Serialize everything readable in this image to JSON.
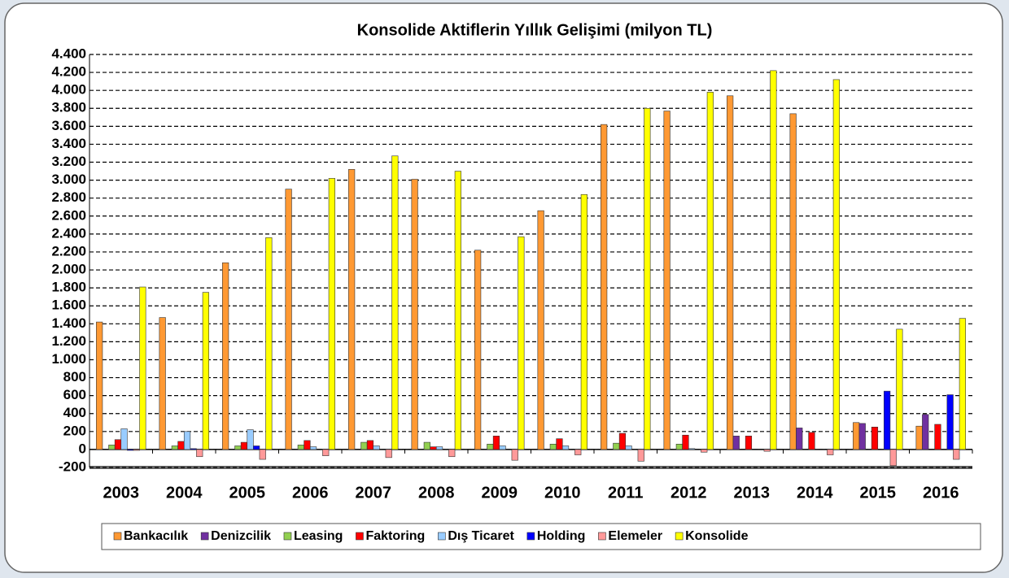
{
  "chart_data": {
    "type": "bar",
    "title": "Konsolide Aktiflerin Yıllık Gelişimi (milyon TL)",
    "categories": [
      "2003",
      "2004",
      "2005",
      "2006",
      "2007",
      "2008",
      "2009",
      "2010",
      "2011",
      "2012",
      "2013",
      "2014",
      "2015",
      "2016"
    ],
    "series": [
      {
        "name": "Bankacılık",
        "color": "#ff9933",
        "values": [
          1420,
          1470,
          2080,
          2900,
          3120,
          3010,
          2220,
          2660,
          3620,
          3770,
          3940,
          3740,
          300,
          260
        ]
      },
      {
        "name": "Denizcilik",
        "color": "#7030a0",
        "values": [
          0,
          0,
          0,
          0,
          0,
          0,
          0,
          0,
          0,
          0,
          150,
          240,
          290,
          390
        ]
      },
      {
        "name": "Leasing",
        "color": "#92d050",
        "values": [
          50,
          40,
          40,
          50,
          80,
          80,
          60,
          60,
          70,
          60,
          0,
          0,
          0,
          0
        ]
      },
      {
        "name": "Faktoring",
        "color": "#ff0000",
        "values": [
          110,
          90,
          80,
          100,
          100,
          30,
          150,
          120,
          180,
          160,
          150,
          190,
          250,
          280
        ]
      },
      {
        "name": "Dış Ticaret",
        "color": "#99ccff",
        "values": [
          230,
          200,
          220,
          30,
          40,
          30,
          40,
          40,
          40,
          10,
          0,
          0,
          0,
          0
        ]
      },
      {
        "name": "Holding",
        "color": "#0000ff",
        "values": [
          -10,
          10,
          40,
          0,
          0,
          0,
          0,
          0,
          0,
          0,
          0,
          0,
          650,
          610
        ]
      },
      {
        "name": "Elemeler",
        "color": "#ff9999",
        "values": [
          -10,
          -80,
          -110,
          -70,
          -90,
          -80,
          -120,
          -60,
          -130,
          -30,
          -20,
          -60,
          -180,
          -110
        ]
      },
      {
        "name": "Konsolide",
        "color": "#ffff00",
        "values": [
          1810,
          1750,
          2360,
          3020,
          3270,
          3100,
          2370,
          2840,
          3800,
          3980,
          4220,
          4120,
          1340,
          1460
        ]
      }
    ],
    "ylim": [
      -200,
      4400
    ],
    "yticks": [
      -200,
      0,
      200,
      400,
      600,
      800,
      {
        "value": 1000,
        "label": "1.000"
      },
      {
        "value": 1200,
        "label": "1.200"
      },
      {
        "value": 1400,
        "label": "1.400"
      },
      {
        "value": 1600,
        "label": "1.600"
      },
      {
        "value": 1800,
        "label": "1.800"
      },
      {
        "value": 2000,
        "label": "2.000"
      },
      {
        "value": 2200,
        "label": "2.200"
      },
      {
        "value": 2400,
        "label": "2.400"
      },
      {
        "value": 2600,
        "label": "2.600"
      },
      {
        "value": 2800,
        "label": "2.800"
      },
      {
        "value": 3000,
        "label": "3.000"
      },
      {
        "value": 3200,
        "label": "3.200"
      },
      {
        "value": 3400,
        "label": "3.400"
      },
      {
        "value": 3600,
        "label": "3.600"
      },
      {
        "value": 3800,
        "label": "3.800"
      },
      {
        "value": 4000,
        "label": "4.000"
      },
      {
        "value": 4200,
        "label": "4.200"
      },
      {
        "value": 4400,
        "label": "4.400"
      }
    ],
    "grid": true,
    "legend": "bottom"
  }
}
